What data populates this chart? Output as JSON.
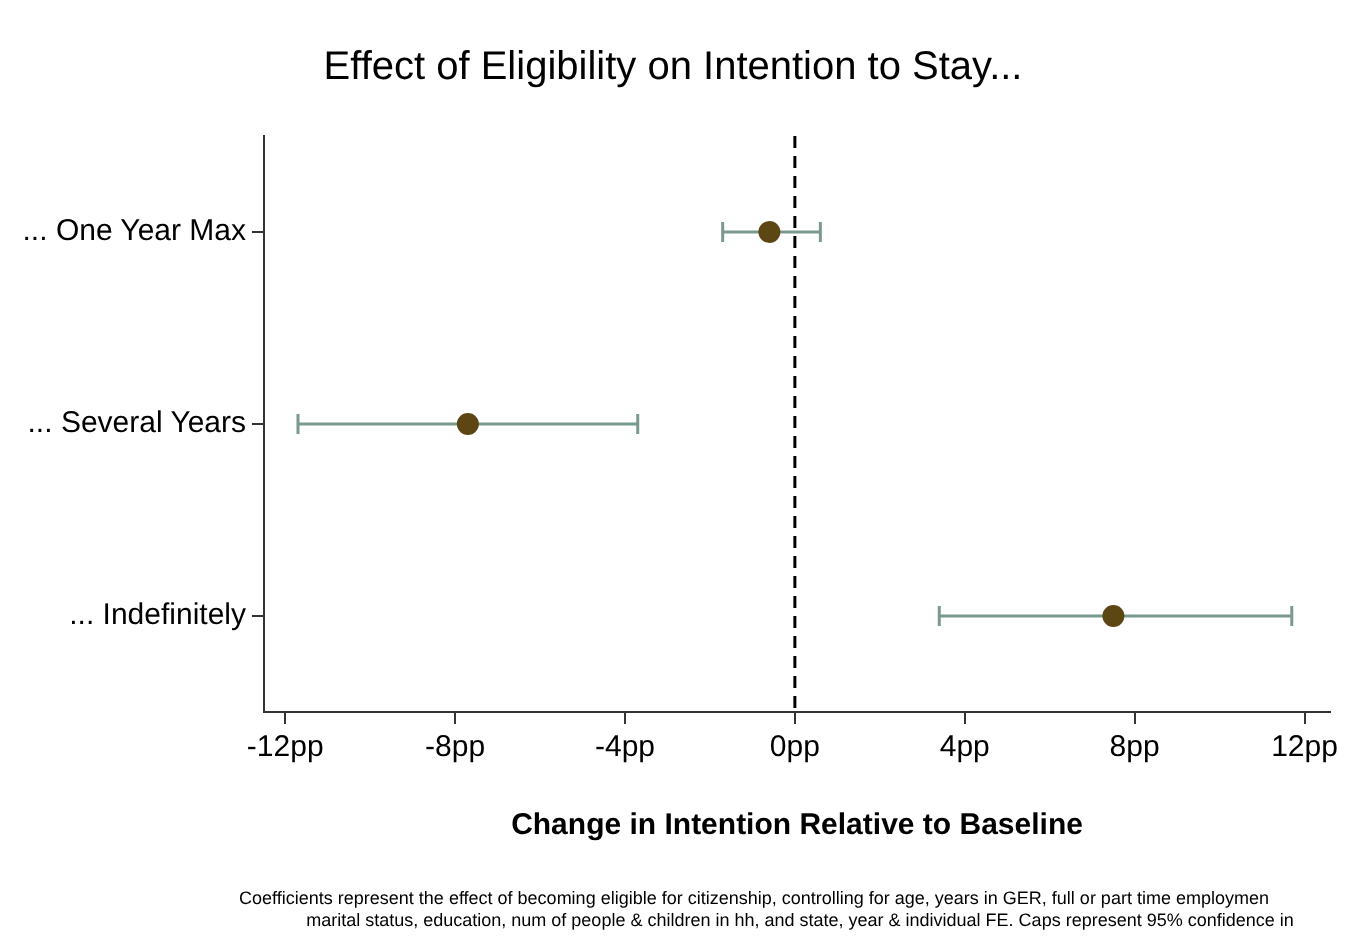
{
  "chart_data": {
    "type": "scatter",
    "orientation": "horizontal",
    "title": "Effect of Eligibility on Intention to Stay...",
    "xlabel": "Change in Intention Relative to Baseline",
    "categories": [
      "... One Year Max",
      "... Several Years",
      "... Indefinitely"
    ],
    "values": [
      -0.6,
      -7.7,
      7.5
    ],
    "errors": [
      [
        -1.7,
        0.6
      ],
      [
        -11.7,
        -3.7
      ],
      [
        3.4,
        11.7
      ]
    ],
    "color": "#5c4614",
    "marker": "circle",
    "xlim": [
      -12.5,
      12.6
    ],
    "xticks": [
      {
        "value": -12,
        "label": "-12pp"
      },
      {
        "value": -8,
        "label": "-8pp"
      },
      {
        "value": -4,
        "label": "-4pp"
      },
      {
        "value": 0,
        "label": "0pp"
      },
      {
        "value": 4,
        "label": "4pp"
      },
      {
        "value": 8,
        "label": "8pp"
      },
      {
        "value": 12,
        "label": "12pp"
      }
    ],
    "ref_lines": [
      {
        "axis": "x",
        "value": 0,
        "color": "#000000",
        "line_style": "dashed"
      }
    ],
    "grid": false,
    "legend": false,
    "annotations": [
      "Coefficients represent the effect of becoming eligible for citizenship, controlling for age, years in GER, full or part time employmen",
      "marital status, education, num of people & children in hh, and state, year & individual FE. Caps represent 95% confidence in"
    ]
  }
}
